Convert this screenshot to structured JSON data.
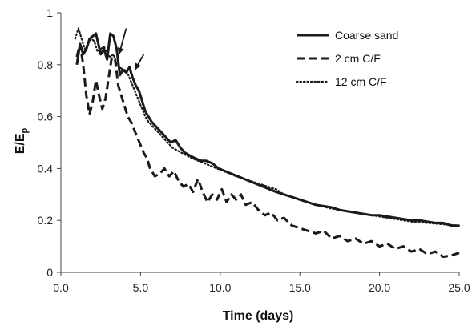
{
  "chart_data": {
    "type": "line",
    "xlabel": "Time (days)",
    "ylabel": {
      "main": "E/E",
      "sub": "p"
    },
    "xlim": [
      0,
      25
    ],
    "ylim": [
      0,
      1
    ],
    "xticks": [
      0,
      5,
      10,
      15,
      20,
      25
    ],
    "xtick_labels": [
      "0.0",
      "5.0",
      "10.0",
      "15.0",
      "20.0",
      "25.0"
    ],
    "yticks": [
      0,
      0.2,
      0.4,
      0.6,
      0.8,
      1
    ],
    "ytick_labels": [
      "0",
      "0.2",
      "0.4",
      "0.6",
      "0.8",
      "1"
    ],
    "grid": false,
    "legend_position": "top-right",
    "annotations": [
      {
        "type": "arrow",
        "x": 3.65,
        "y": 0.84,
        "from": [
          4.1,
          0.94
        ]
      },
      {
        "type": "arrow",
        "x": 4.65,
        "y": 0.78,
        "from": [
          5.2,
          0.84
        ]
      }
    ],
    "series": [
      {
        "name": "Coarse sand",
        "style": "solid",
        "color": "#1a1a1a",
        "x": [
          1.0,
          1.2,
          1.4,
          1.6,
          1.8,
          2.0,
          2.2,
          2.5,
          2.7,
          2.9,
          3.1,
          3.3,
          3.5,
          3.7,
          3.9,
          4.1,
          4.3,
          4.5,
          4.7,
          4.9,
          5.1,
          5.3,
          5.5,
          5.7,
          6.0,
          6.3,
          6.6,
          6.9,
          7.2,
          7.5,
          7.8,
          8.1,
          8.4,
          8.8,
          9.1,
          9.5,
          9.9,
          10.3,
          10.7,
          11.1,
          11.5,
          11.9,
          12.3,
          12.7,
          13.1,
          13.5,
          14.0,
          14.5,
          15.0,
          15.5,
          16.0,
          16.5,
          17.0,
          17.5,
          18.0,
          18.5,
          19.0,
          19.5,
          20.0,
          20.5,
          21.0,
          21.5,
          22.0,
          22.5,
          23.0,
          23.5,
          24.0,
          24.5,
          25.0
        ],
        "values": [
          0.8,
          0.88,
          0.84,
          0.86,
          0.9,
          0.91,
          0.92,
          0.84,
          0.86,
          0.82,
          0.92,
          0.91,
          0.86,
          0.76,
          0.78,
          0.77,
          0.79,
          0.75,
          0.72,
          0.7,
          0.66,
          0.62,
          0.6,
          0.58,
          0.56,
          0.54,
          0.52,
          0.5,
          0.51,
          0.48,
          0.46,
          0.45,
          0.44,
          0.43,
          0.43,
          0.42,
          0.4,
          0.39,
          0.38,
          0.37,
          0.36,
          0.35,
          0.34,
          0.33,
          0.32,
          0.31,
          0.3,
          0.29,
          0.28,
          0.27,
          0.26,
          0.255,
          0.25,
          0.24,
          0.235,
          0.23,
          0.225,
          0.22,
          0.22,
          0.215,
          0.21,
          0.205,
          0.2,
          0.2,
          0.195,
          0.19,
          0.19,
          0.18,
          0.18
        ]
      },
      {
        "name": "2 cm C/F",
        "style": "dashed",
        "color": "#1a1a1a",
        "x": [
          1.0,
          1.2,
          1.4,
          1.6,
          1.8,
          2.0,
          2.2,
          2.4,
          2.6,
          2.8,
          3.0,
          3.2,
          3.4,
          3.6,
          3.8,
          4.0,
          4.2,
          4.4,
          4.6,
          4.8,
          5.0,
          5.2,
          5.4,
          5.6,
          5.9,
          6.2,
          6.5,
          6.8,
          7.1,
          7.4,
          7.7,
          8.0,
          8.3,
          8.6,
          8.9,
          9.2,
          9.5,
          9.8,
          10.1,
          10.4,
          10.7,
          11.0,
          11.3,
          11.6,
          12.0,
          12.4,
          12.8,
          13.2,
          13.6,
          14.0,
          14.5,
          15.0,
          15.5,
          16.0,
          16.5,
          17.0,
          17.5,
          18.0,
          18.5,
          19.0,
          19.5,
          20.0,
          20.5,
          21.0,
          21.5,
          22.0,
          22.5,
          23.0,
          23.5,
          24.0,
          24.5,
          25.0
        ],
        "values": [
          0.83,
          0.88,
          0.8,
          0.68,
          0.61,
          0.66,
          0.74,
          0.68,
          0.63,
          0.67,
          0.75,
          0.83,
          0.82,
          0.72,
          0.68,
          0.64,
          0.6,
          0.58,
          0.55,
          0.52,
          0.49,
          0.46,
          0.44,
          0.4,
          0.37,
          0.38,
          0.4,
          0.37,
          0.39,
          0.35,
          0.33,
          0.34,
          0.31,
          0.36,
          0.31,
          0.27,
          0.3,
          0.28,
          0.32,
          0.27,
          0.3,
          0.28,
          0.3,
          0.26,
          0.27,
          0.24,
          0.22,
          0.23,
          0.2,
          0.21,
          0.18,
          0.17,
          0.16,
          0.15,
          0.16,
          0.13,
          0.14,
          0.12,
          0.13,
          0.11,
          0.12,
          0.1,
          0.11,
          0.09,
          0.1,
          0.08,
          0.09,
          0.07,
          0.08,
          0.06,
          0.065,
          0.075
        ]
      },
      {
        "name": "12 cm C/F",
        "style": "dotted",
        "color": "#1a1a1a",
        "x": [
          0.9,
          1.1,
          1.3,
          1.5,
          1.7,
          1.9,
          2.1,
          2.3,
          2.5,
          2.7,
          2.9,
          3.1,
          3.3,
          3.5,
          3.7,
          3.9,
          4.1,
          4.3,
          4.5,
          4.7,
          4.9,
          5.1,
          5.3,
          5.5,
          5.8,
          6.1,
          6.4,
          6.7,
          7.0,
          7.3,
          7.6,
          7.9,
          8.2,
          8.6,
          9.0,
          9.4,
          9.8,
          10.2,
          10.6,
          11.0,
          11.5,
          12.0,
          12.5,
          13.0,
          13.5,
          14.0,
          15.0,
          16.0,
          17.0,
          18.0,
          19.0,
          20.0,
          21.0,
          22.0,
          23.0,
          24.0,
          25.0
        ],
        "values": [
          0.9,
          0.94,
          0.9,
          0.86,
          0.88,
          0.9,
          0.89,
          0.85,
          0.86,
          0.87,
          0.84,
          0.83,
          0.84,
          0.8,
          0.79,
          0.78,
          0.78,
          0.75,
          0.72,
          0.69,
          0.66,
          0.63,
          0.6,
          0.58,
          0.56,
          0.54,
          0.52,
          0.5,
          0.48,
          0.47,
          0.46,
          0.45,
          0.44,
          0.43,
          0.42,
          0.41,
          0.4,
          0.39,
          0.38,
          0.37,
          0.36,
          0.35,
          0.34,
          0.33,
          0.32,
          0.3,
          0.28,
          0.26,
          0.245,
          0.235,
          0.225,
          0.215,
          0.205,
          0.195,
          0.19,
          0.185,
          0.18
        ]
      }
    ]
  }
}
